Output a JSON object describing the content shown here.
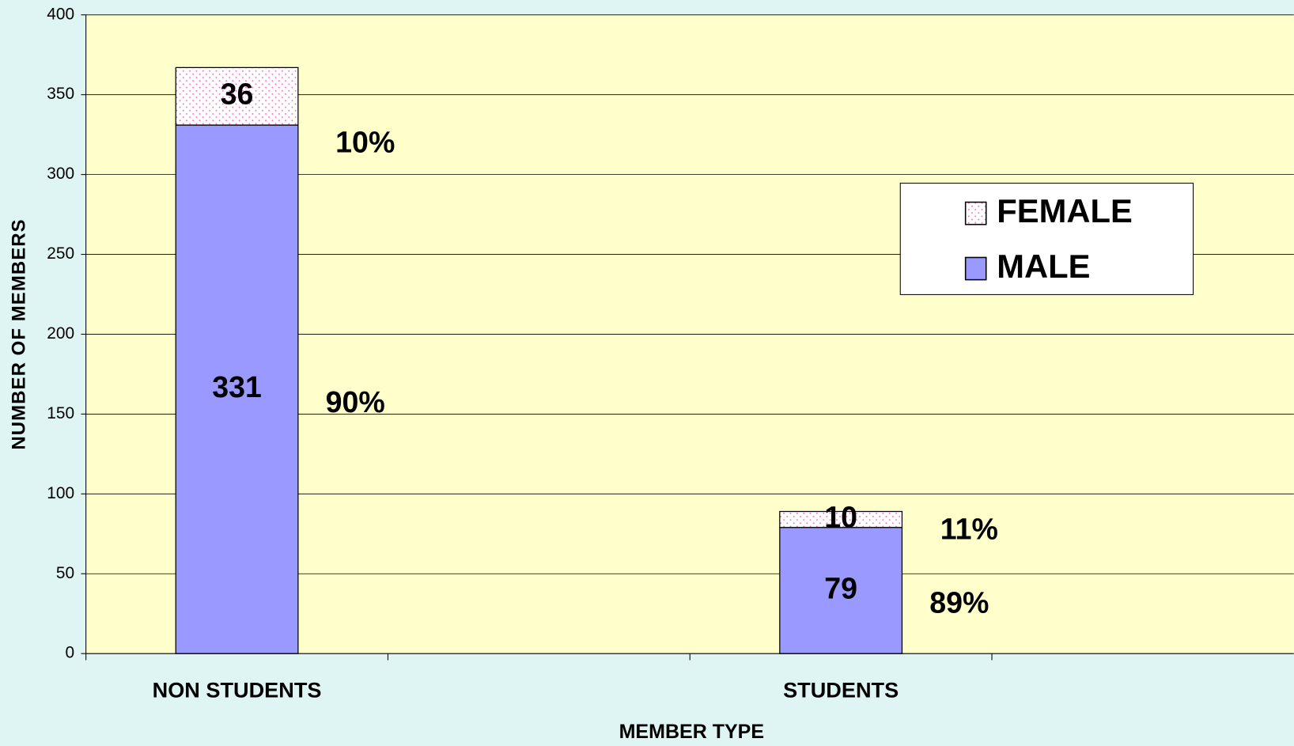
{
  "chart_data": {
    "type": "stacked_bar",
    "x_label": "MEMBER TYPE",
    "y_label": "NUMBER OF MEMBERS",
    "categories": [
      "NON STUDENTS",
      null,
      "STUDENTS",
      null
    ],
    "series": [
      {
        "name": "MALE",
        "color": "#9999ff",
        "values": [
          331,
          0,
          79,
          0
        ]
      },
      {
        "name": "FEMALE",
        "color": "#ff66cc",
        "values": [
          36,
          0,
          10,
          0
        ]
      }
    ],
    "annotations": [
      {
        "category": 0,
        "series": 0,
        "text": "90%"
      },
      {
        "category": 0,
        "series": 1,
        "text": "10%"
      },
      {
        "category": 2,
        "series": 0,
        "text": "89%"
      },
      {
        "category": 2,
        "series": 1,
        "text": "11%"
      }
    ],
    "ylim": [
      0,
      400
    ],
    "yticks": [
      0,
      50,
      100,
      150,
      200,
      250,
      300,
      350,
      400
    ],
    "grid": true,
    "legend": "upper right"
  }
}
